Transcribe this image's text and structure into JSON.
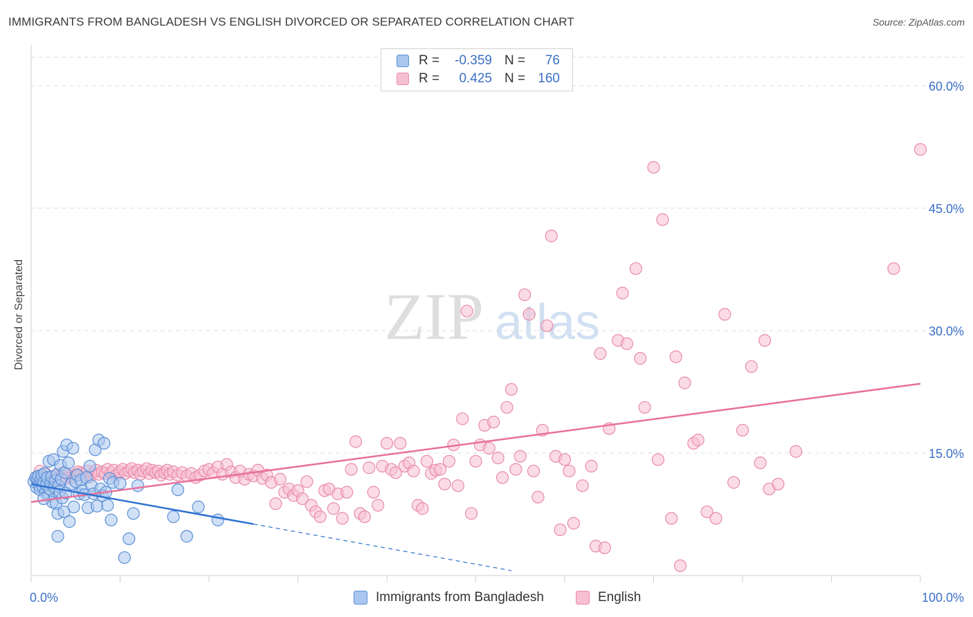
{
  "title": "IMMIGRANTS FROM BANGLADESH VS ENGLISH DIVORCED OR SEPARATED CORRELATION CHART",
  "source": "Source: ZipAtlas.com",
  "watermark": {
    "zip": "ZIP",
    "atlas": "atlas"
  },
  "legend": {
    "r_label": "R =",
    "n_label": "N =",
    "rows": [
      {
        "r": "-0.359",
        "n": "76",
        "color": "#a9c6ef",
        "border": "#5b8fd6"
      },
      {
        "r": "0.425",
        "n": "160",
        "color": "#f7bfd2",
        "border": "#e88aaa"
      }
    ]
  },
  "colors": {
    "blue_fill": "#a9c6ef",
    "blue_stroke": "#5b8fd6",
    "blue_line": "#2f72d0",
    "pink_fill": "#f7bfd2",
    "pink_stroke": "#e88aaa",
    "pink_line": "#e8709a",
    "tick_text": "#3b6fc7",
    "grid": "#dcdcdc"
  },
  "chart_data": {
    "type": "scatter",
    "title": "IMMIGRANTS FROM BANGLADESH VS ENGLISH DIVORCED OR SEPARATED CORRELATION CHART",
    "xlabel": "",
    "ylabel": "Divorced or Separated",
    "xlim": [
      0,
      100
    ],
    "ylim": [
      0,
      65
    ],
    "x_tick_labels": [
      "0.0%",
      "100.0%"
    ],
    "y_ticks": [
      15,
      30,
      45,
      60
    ],
    "y_tick_labels": [
      "15.0%",
      "30.0%",
      "45.0%",
      "60.0%"
    ],
    "grid": true,
    "legend_position": "top-center",
    "series": [
      {
        "name": "Immigrants from Bangladesh",
        "R": -0.359,
        "N": 76,
        "trend": {
          "x0": 0,
          "y0": 11.2,
          "x1": 25,
          "y1": 6.3,
          "dashed_to_x": 54,
          "dashed_to_y": 0.6
        },
        "points": [
          [
            0.3,
            11.5
          ],
          [
            0.5,
            12.0
          ],
          [
            0.6,
            10.8
          ],
          [
            0.7,
            11.9
          ],
          [
            0.8,
            12.2
          ],
          [
            0.9,
            11.0
          ],
          [
            1.0,
            10.5
          ],
          [
            1.1,
            11.8
          ],
          [
            1.2,
            12.3
          ],
          [
            1.3,
            10.9
          ],
          [
            1.4,
            11.4
          ],
          [
            1.5,
            12.5
          ],
          [
            1.6,
            10.2
          ],
          [
            1.7,
            11.1
          ],
          [
            1.8,
            12.0
          ],
          [
            1.9,
            9.8
          ],
          [
            2.0,
            14.0
          ],
          [
            2.1,
            10.6
          ],
          [
            2.2,
            11.3
          ],
          [
            2.3,
            12.1
          ],
          [
            2.4,
            9.0
          ],
          [
            2.5,
            14.2
          ],
          [
            2.6,
            10.8
          ],
          [
            2.7,
            11.6
          ],
          [
            2.8,
            8.8
          ],
          [
            2.9,
            12.4
          ],
          [
            3.0,
            7.6
          ],
          [
            3.1,
            11.0
          ],
          [
            3.2,
            10.3
          ],
          [
            3.3,
            13.5
          ],
          [
            3.4,
            11.8
          ],
          [
            3.5,
            9.5
          ],
          [
            3.6,
            15.2
          ],
          [
            3.7,
            7.8
          ],
          [
            3.8,
            12.6
          ],
          [
            3.9,
            10.1
          ],
          [
            4.0,
            16.0
          ],
          [
            4.2,
            13.8
          ],
          [
            4.3,
            6.6
          ],
          [
            4.5,
            11.2
          ],
          [
            4.7,
            15.6
          ],
          [
            4.8,
            8.4
          ],
          [
            5.0,
            11.5
          ],
          [
            5.2,
            12.3
          ],
          [
            5.4,
            10.0
          ],
          [
            5.6,
            11.7
          ],
          [
            5.8,
            10.4
          ],
          [
            6.0,
            9.9
          ],
          [
            6.2,
            12.0
          ],
          [
            6.4,
            8.3
          ],
          [
            6.6,
            13.4
          ],
          [
            6.8,
            11.0
          ],
          [
            7.0,
            10.0
          ],
          [
            7.2,
            15.4
          ],
          [
            7.4,
            8.5
          ],
          [
            7.6,
            16.6
          ],
          [
            7.8,
            10.6
          ],
          [
            8.0,
            9.8
          ],
          [
            8.2,
            16.2
          ],
          [
            8.4,
            10.2
          ],
          [
            8.6,
            8.6
          ],
          [
            8.8,
            11.9
          ],
          [
            9.0,
            6.8
          ],
          [
            9.2,
            11.4
          ],
          [
            3.0,
            4.8
          ],
          [
            10.0,
            11.3
          ],
          [
            10.5,
            2.2
          ],
          [
            11.0,
            4.5
          ],
          [
            11.5,
            7.6
          ],
          [
            12.0,
            11.0
          ],
          [
            16.0,
            7.2
          ],
          [
            16.5,
            10.5
          ],
          [
            17.5,
            4.8
          ],
          [
            18.8,
            8.4
          ],
          [
            21.0,
            6.8
          ],
          [
            1.4,
            9.4
          ]
        ]
      },
      {
        "name": "English",
        "R": 0.425,
        "N": 160,
        "trend": {
          "x0": 0,
          "y0": 9.0,
          "x1": 100,
          "y1": 23.5
        },
        "points": [
          [
            0.5,
            12.0
          ],
          [
            0.8,
            11.5
          ],
          [
            1.0,
            12.8
          ],
          [
            1.3,
            12.2
          ],
          [
            1.6,
            12.5
          ],
          [
            2.0,
            11.8
          ],
          [
            2.3,
            12.0
          ],
          [
            2.6,
            11.6
          ],
          [
            3.0,
            12.3
          ],
          [
            3.3,
            12.0
          ],
          [
            3.6,
            12.6
          ],
          [
            4.0,
            11.9
          ],
          [
            4.3,
            12.2
          ],
          [
            4.6,
            12.0
          ],
          [
            5.0,
            12.4
          ],
          [
            5.3,
            12.7
          ],
          [
            5.6,
            12.5
          ],
          [
            6.0,
            12.3
          ],
          [
            6.3,
            12.8
          ],
          [
            6.6,
            12.1
          ],
          [
            7.0,
            12.6
          ],
          [
            7.3,
            12.9
          ],
          [
            7.6,
            12.4
          ],
          [
            8.0,
            12.7
          ],
          [
            8.3,
            12.5
          ],
          [
            8.6,
            13.0
          ],
          [
            9.0,
            12.6
          ],
          [
            9.3,
            12.9
          ],
          [
            9.6,
            12.3
          ],
          [
            10.0,
            12.7
          ],
          [
            10.3,
            13.0
          ],
          [
            10.6,
            12.5
          ],
          [
            11.0,
            12.8
          ],
          [
            11.3,
            13.1
          ],
          [
            11.6,
            12.6
          ],
          [
            12.0,
            12.9
          ],
          [
            12.3,
            12.4
          ],
          [
            12.6,
            12.8
          ],
          [
            13.0,
            13.1
          ],
          [
            13.3,
            12.5
          ],
          [
            13.6,
            12.9
          ],
          [
            14.0,
            12.6
          ],
          [
            14.3,
            12.8
          ],
          [
            14.6,
            12.3
          ],
          [
            15.0,
            12.6
          ],
          [
            15.3,
            12.9
          ],
          [
            15.6,
            12.4
          ],
          [
            16.0,
            12.7
          ],
          [
            16.5,
            12.3
          ],
          [
            17.0,
            12.6
          ],
          [
            17.5,
            12.2
          ],
          [
            18.0,
            12.5
          ],
          [
            18.5,
            12.0
          ],
          [
            19.0,
            12.3
          ],
          [
            19.5,
            12.8
          ],
          [
            20.0,
            13.0
          ],
          [
            20.5,
            12.6
          ],
          [
            21.0,
            13.3
          ],
          [
            21.5,
            12.4
          ],
          [
            22.0,
            13.6
          ],
          [
            22.5,
            12.7
          ],
          [
            23.0,
            12.0
          ],
          [
            23.5,
            12.8
          ],
          [
            24.0,
            11.8
          ],
          [
            24.5,
            12.4
          ],
          [
            25.0,
            12.2
          ],
          [
            25.5,
            12.9
          ],
          [
            26.0,
            11.9
          ],
          [
            26.5,
            12.3
          ],
          [
            27.0,
            11.4
          ],
          [
            27.5,
            8.8
          ],
          [
            28.0,
            11.8
          ],
          [
            28.5,
            10.2
          ],
          [
            29.0,
            10.6
          ],
          [
            29.5,
            9.8
          ],
          [
            30.0,
            10.4
          ],
          [
            30.5,
            9.4
          ],
          [
            31.0,
            11.5
          ],
          [
            31.5,
            8.6
          ],
          [
            32.0,
            7.8
          ],
          [
            32.5,
            7.2
          ],
          [
            33.0,
            10.4
          ],
          [
            33.5,
            10.6
          ],
          [
            34.0,
            8.2
          ],
          [
            34.5,
            10.0
          ],
          [
            35.0,
            7.0
          ],
          [
            35.5,
            10.2
          ],
          [
            36.0,
            13.0
          ],
          [
            36.5,
            16.4
          ],
          [
            37.0,
            7.6
          ],
          [
            37.5,
            7.2
          ],
          [
            38.0,
            13.2
          ],
          [
            38.5,
            10.2
          ],
          [
            39.0,
            8.6
          ],
          [
            39.5,
            13.4
          ],
          [
            40.0,
            16.2
          ],
          [
            40.5,
            13.0
          ],
          [
            41.0,
            12.6
          ],
          [
            41.5,
            16.2
          ],
          [
            42.0,
            13.4
          ],
          [
            42.5,
            13.8
          ],
          [
            43.0,
            12.8
          ],
          [
            43.5,
            8.6
          ],
          [
            44.0,
            8.2
          ],
          [
            44.5,
            14.0
          ],
          [
            45.0,
            12.5
          ],
          [
            45.5,
            12.9
          ],
          [
            46.0,
            13.0
          ],
          [
            46.5,
            11.2
          ],
          [
            47.0,
            14.0
          ],
          [
            47.5,
            16.0
          ],
          [
            48.0,
            11.0
          ],
          [
            48.5,
            19.2
          ],
          [
            49.0,
            32.4
          ],
          [
            49.5,
            7.6
          ],
          [
            50.0,
            14.0
          ],
          [
            50.5,
            16.0
          ],
          [
            51.0,
            18.4
          ],
          [
            51.5,
            15.6
          ],
          [
            52.0,
            18.8
          ],
          [
            52.5,
            14.4
          ],
          [
            53.0,
            12.0
          ],
          [
            53.5,
            20.6
          ],
          [
            54.0,
            22.8
          ],
          [
            54.5,
            13.0
          ],
          [
            55.0,
            14.6
          ],
          [
            55.5,
            34.4
          ],
          [
            56.0,
            32.0
          ],
          [
            56.5,
            12.8
          ],
          [
            57.0,
            9.6
          ],
          [
            57.5,
            17.8
          ],
          [
            58.0,
            30.6
          ],
          [
            58.5,
            41.6
          ],
          [
            59.0,
            14.6
          ],
          [
            59.5,
            5.6
          ],
          [
            60.0,
            14.2
          ],
          [
            60.5,
            12.8
          ],
          [
            61.0,
            6.4
          ],
          [
            62.0,
            11.0
          ],
          [
            63.0,
            13.4
          ],
          [
            63.5,
            3.6
          ],
          [
            64.0,
            27.2
          ],
          [
            64.5,
            3.4
          ],
          [
            65.0,
            18.0
          ],
          [
            66.0,
            28.8
          ],
          [
            66.5,
            34.6
          ],
          [
            67.0,
            28.4
          ],
          [
            68.0,
            37.6
          ],
          [
            68.5,
            26.6
          ],
          [
            69.0,
            20.6
          ],
          [
            70.0,
            50.0
          ],
          [
            70.5,
            14.2
          ],
          [
            71.0,
            43.6
          ],
          [
            72.0,
            7.0
          ],
          [
            72.5,
            26.8
          ],
          [
            73.0,
            1.2
          ],
          [
            73.5,
            23.6
          ],
          [
            74.5,
            16.2
          ],
          [
            75.0,
            16.6
          ],
          [
            76.0,
            7.8
          ],
          [
            77.0,
            7.0
          ],
          [
            78.0,
            32.0
          ],
          [
            79.0,
            11.4
          ],
          [
            80.0,
            17.8
          ],
          [
            81.0,
            25.6
          ],
          [
            82.0,
            13.8
          ],
          [
            82.5,
            28.8
          ],
          [
            83.0,
            10.6
          ],
          [
            84.0,
            11.2
          ],
          [
            86.0,
            15.2
          ],
          [
            97.0,
            37.6
          ],
          [
            100.0,
            52.2
          ]
        ]
      }
    ]
  },
  "bottom_legend": [
    "Immigrants from Bangladesh",
    "English"
  ]
}
